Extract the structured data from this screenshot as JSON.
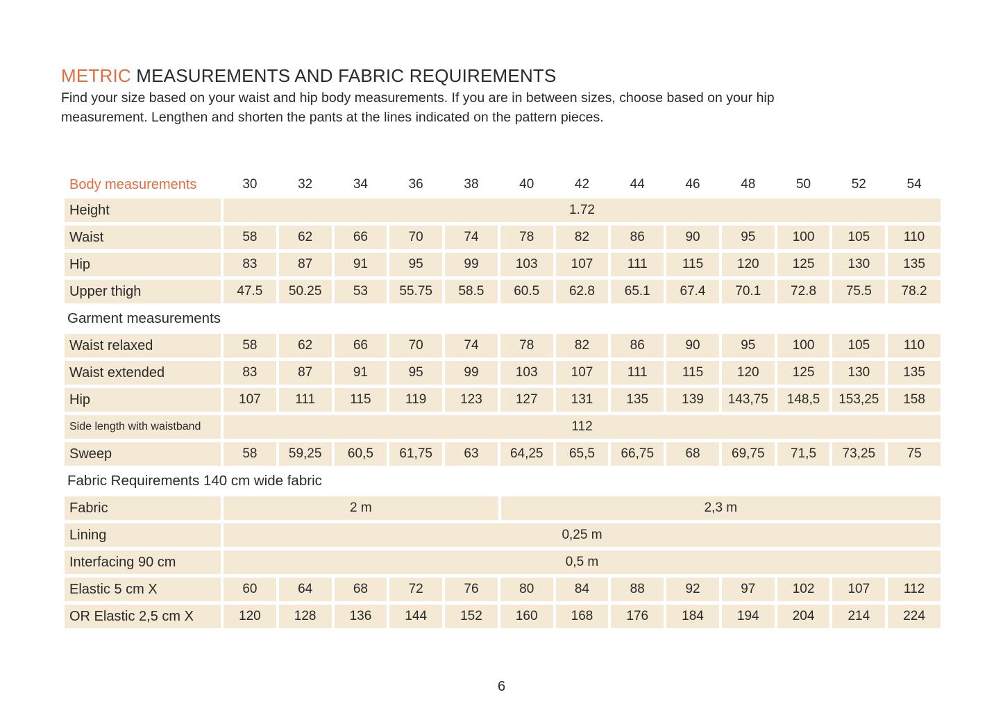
{
  "page": {
    "title_highlight": "METRIC",
    "title_rest": " MEASUREMENTS AND FABRIC REQUIREMENTS",
    "intro_line1": "Find your size based on your waist and hip body measurements. If you are in between sizes, choose based on your hip",
    "intro_line2": "measurement. Lengthen and shorten the pants at the lines indicated on the pattern pieces.",
    "page_number": "6"
  },
  "colors": {
    "accent_orange": "#E06E42",
    "cell_beige": "#F3E9D5",
    "text": "#2B2A28",
    "background": "#FFFFFF"
  },
  "table": {
    "header": {
      "label": "Body measurements",
      "sizes": [
        "30",
        "32",
        "34",
        "36",
        "38",
        "40",
        "42",
        "44",
        "46",
        "48",
        "50",
        "52",
        "54"
      ]
    },
    "rows": [
      {
        "type": "merged",
        "label": "Height",
        "value": "1.72"
      },
      {
        "type": "cells",
        "label": "Waist",
        "values": [
          "58",
          "62",
          "66",
          "70",
          "74",
          "78",
          "82",
          "86",
          "90",
          "95",
          "100",
          "105",
          "110"
        ]
      },
      {
        "type": "cells",
        "label": "Hip",
        "values": [
          "83",
          "87",
          "91",
          "95",
          "99",
          "103",
          "107",
          "111",
          "115",
          "120",
          "125",
          "130",
          "135"
        ]
      },
      {
        "type": "cells",
        "label": "Upper thigh",
        "values": [
          "47.5",
          "50.25",
          "53",
          "55.75",
          "58.5",
          "60.5",
          "62.8",
          "65.1",
          "67.4",
          "70.1",
          "72.8",
          "75.5",
          "78.2"
        ]
      },
      {
        "type": "section",
        "label": "Garment measurements"
      },
      {
        "type": "cells",
        "label": "Waist relaxed",
        "values": [
          "58",
          "62",
          "66",
          "70",
          "74",
          "78",
          "82",
          "86",
          "90",
          "95",
          "100",
          "105",
          "110"
        ]
      },
      {
        "type": "cells",
        "label": "Waist extended",
        "values": [
          "83",
          "87",
          "91",
          "95",
          "99",
          "103",
          "107",
          "111",
          "115",
          "120",
          "125",
          "130",
          "135"
        ]
      },
      {
        "type": "cells",
        "label": "Hip",
        "values": [
          "107",
          "111",
          "115",
          "119",
          "123",
          "127",
          "131",
          "135",
          "139",
          "143,75",
          "148,5",
          "153,25",
          "158"
        ]
      },
      {
        "type": "merged",
        "label": "Side length with waistband",
        "small_label": true,
        "value": "112"
      },
      {
        "type": "cells",
        "label": "Sweep",
        "values": [
          "58",
          "59,25",
          "60,5",
          "61,75",
          "63",
          "64,25",
          "65,5",
          "66,75",
          "68",
          "69,75",
          "71,5",
          "73,25",
          "75"
        ]
      },
      {
        "type": "section",
        "label": "Fabric Requirements 140 cm wide fabric"
      },
      {
        "type": "split",
        "label": "Fabric",
        "segments": [
          {
            "value": "2 m",
            "span": 5
          },
          {
            "value": "2,3 m",
            "span": 8
          }
        ]
      },
      {
        "type": "merged",
        "label": "Lining",
        "value": "0,25 m"
      },
      {
        "type": "merged",
        "label": "Interfacing 90 cm",
        "value": "0,5 m"
      },
      {
        "type": "cells",
        "label": "Elastic 5 cm X",
        "values": [
          "60",
          "64",
          "68",
          "72",
          "76",
          "80",
          "84",
          "88",
          "92",
          "97",
          "102",
          "107",
          "112"
        ]
      },
      {
        "type": "cells",
        "label": "OR Elastic 2,5 cm X",
        "values": [
          "120",
          "128",
          "136",
          "144",
          "152",
          "160",
          "168",
          "176",
          "184",
          "194",
          "204",
          "214",
          "224"
        ]
      }
    ]
  }
}
